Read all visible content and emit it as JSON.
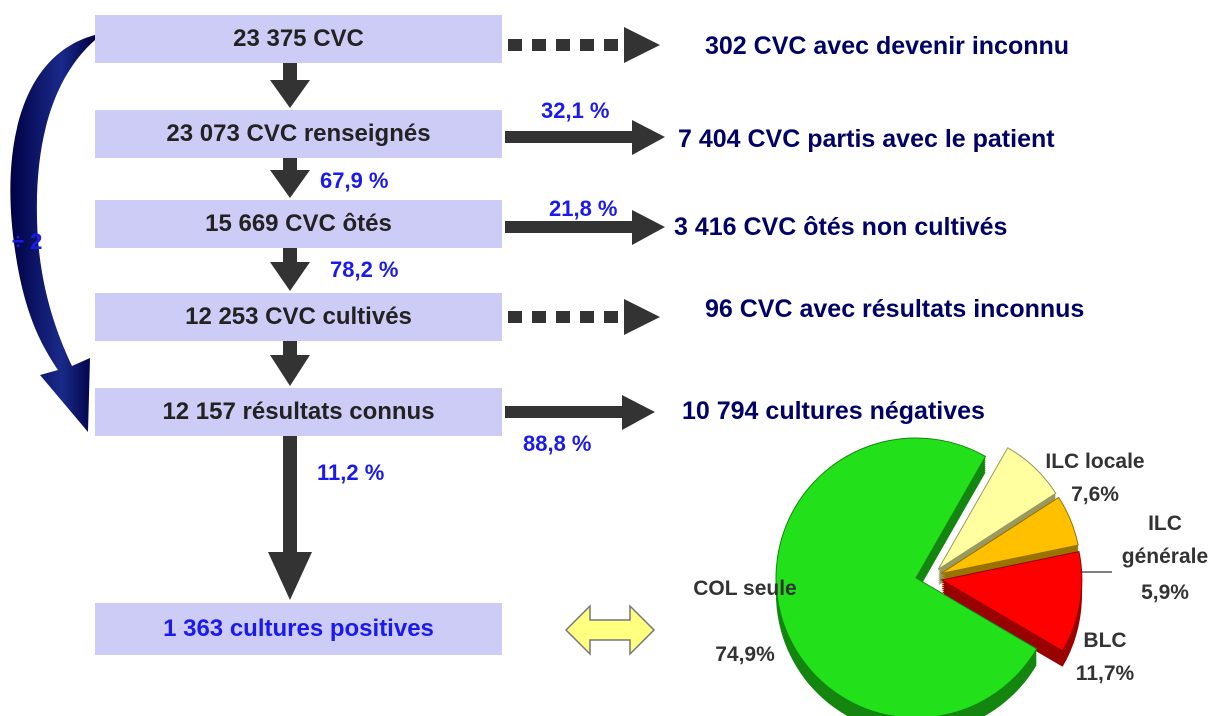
{
  "divider": "÷ 2",
  "boxes": [
    "23 375 CVC",
    "23 073 CVC renseignés",
    "15 669 CVC ôtés",
    "12 253 CVC cultivés",
    "12 157 résultats connus",
    "1 363 cultures positives"
  ],
  "outcomes": [
    "302 CVC avec devenir inconnu",
    "7 404 CVC partis avec le patient",
    "3 416 CVC ôtés non cultivés",
    "96 CVC avec résultats inconnus",
    "10 794 cultures négatives"
  ],
  "percents": [
    "32,1 %",
    "67,9 %",
    "21,8 %",
    "78,2 %",
    "88,8 %",
    "11,2 %"
  ],
  "chart_data": {
    "type": "pie",
    "categories": [
      "COL seule",
      "ILC locale",
      "ILC générale",
      "BLC"
    ],
    "values": [
      74.9,
      7.6,
      5.9,
      11.7
    ],
    "value_labels": [
      "74,9%",
      "7,6%",
      "5,9%",
      "11,7%"
    ],
    "colors": [
      "#22e01a",
      "#ffffa0",
      "#ffc000",
      "#ff0000"
    ]
  }
}
